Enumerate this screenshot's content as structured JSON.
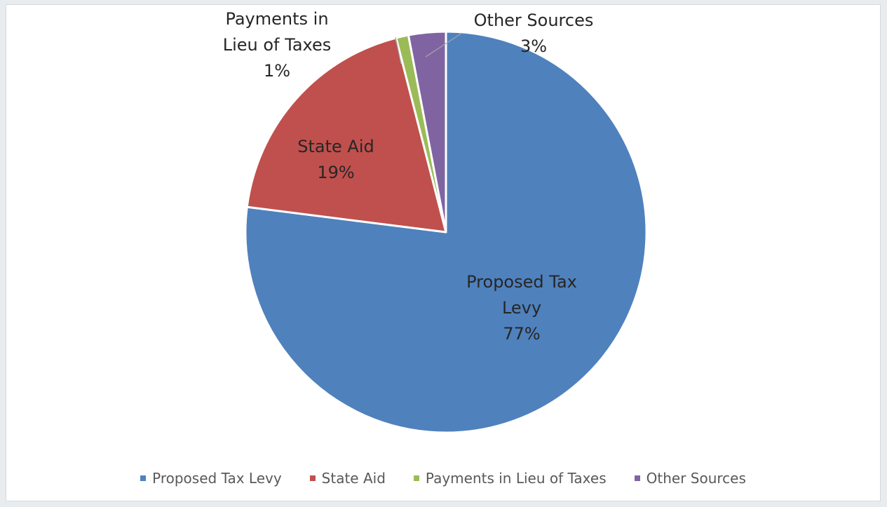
{
  "chart_data": {
    "type": "pie",
    "start_angle_deg": 0,
    "direction": "clockwise",
    "slices": [
      {
        "name": "Proposed Tax Levy",
        "value": 77,
        "label_lines": [
          "Proposed Tax",
          "Levy",
          "77%"
        ],
        "color": "#4F81BD"
      },
      {
        "name": "State Aid",
        "value": 19,
        "label_lines": [
          "State Aid",
          "19%"
        ],
        "color": "#C0504D"
      },
      {
        "name": "Payments in Lieu of Taxes",
        "value": 1,
        "label_lines": [
          "Payments in",
          "Lieu of Taxes",
          "1%"
        ],
        "color": "#9BBB59"
      },
      {
        "name": "Other Sources",
        "value": 3,
        "label_lines": [
          "Other Sources",
          "3%"
        ],
        "color": "#8064A2"
      }
    ],
    "legend": {
      "position": "bottom",
      "items": [
        "Proposed Tax Levy",
        "State Aid",
        "Payments in Lieu of Taxes",
        "Other Sources"
      ]
    }
  }
}
